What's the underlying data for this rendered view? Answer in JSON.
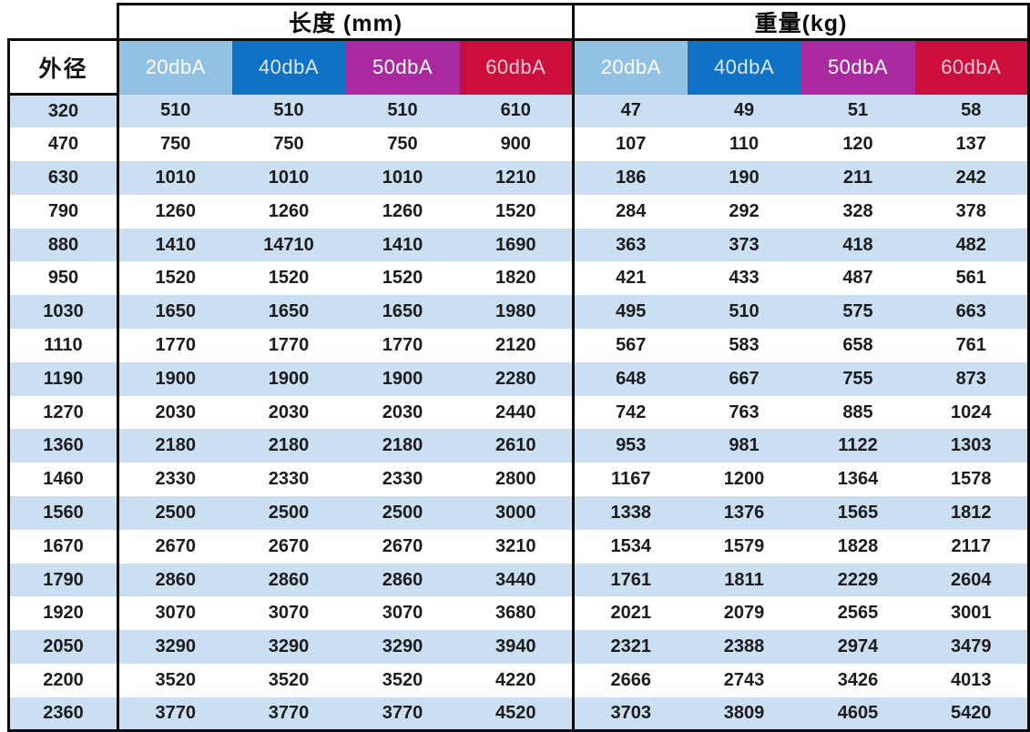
{
  "table": {
    "corner_label": "外径",
    "sections": [
      {
        "title": "长度 (mm)"
      },
      {
        "title": "重量(kg)"
      }
    ],
    "column_headers": [
      "20dbA",
      "40dbA",
      "50dbA",
      "60dbA"
    ],
    "column_styles": [
      {
        "name": "20dbA",
        "bg": "#92C1E4",
        "fg": "#FFFFFF"
      },
      {
        "name": "40dbA",
        "bg": "#0F72C4",
        "fg": "#DCE9F7"
      },
      {
        "name": "50dbA",
        "bg": "#AA28A0",
        "fg": "#FFFFFF"
      },
      {
        "name": "60dbA",
        "bg": "#CB0E3B",
        "fg": "#F0C9D4"
      }
    ],
    "rows": [
      {
        "diameter": "320",
        "length": [
          "510",
          "510",
          "510",
          "610"
        ],
        "weight": [
          "47",
          "49",
          "51",
          "58"
        ]
      },
      {
        "diameter": "470",
        "length": [
          "750",
          "750",
          "750",
          "900"
        ],
        "weight": [
          "107",
          "110",
          "120",
          "137"
        ]
      },
      {
        "diameter": "630",
        "length": [
          "1010",
          "1010",
          "1010",
          "1210"
        ],
        "weight": [
          "186",
          "190",
          "211",
          "242"
        ]
      },
      {
        "diameter": "790",
        "length": [
          "1260",
          "1260",
          "1260",
          "1520"
        ],
        "weight": [
          "284",
          "292",
          "328",
          "378"
        ]
      },
      {
        "diameter": "880",
        "length": [
          "1410",
          "14710",
          "1410",
          "1690"
        ],
        "weight": [
          "363",
          "373",
          "418",
          "482"
        ]
      },
      {
        "diameter": "950",
        "length": [
          "1520",
          "1520",
          "1520",
          "1820"
        ],
        "weight": [
          "421",
          "433",
          "487",
          "561"
        ]
      },
      {
        "diameter": "1030",
        "length": [
          "1650",
          "1650",
          "1650",
          "1980"
        ],
        "weight": [
          "495",
          "510",
          "575",
          "663"
        ]
      },
      {
        "diameter": "1110",
        "length": [
          "1770",
          "1770",
          "1770",
          "2120"
        ],
        "weight": [
          "567",
          "583",
          "658",
          "761"
        ]
      },
      {
        "diameter": "1190",
        "length": [
          "1900",
          "1900",
          "1900",
          "2280"
        ],
        "weight": [
          "648",
          "667",
          "755",
          "873"
        ]
      },
      {
        "diameter": "1270",
        "length": [
          "2030",
          "2030",
          "2030",
          "2440"
        ],
        "weight": [
          "742",
          "763",
          "885",
          "1024"
        ]
      },
      {
        "diameter": "1360",
        "length": [
          "2180",
          "2180",
          "2180",
          "2610"
        ],
        "weight": [
          "953",
          "981",
          "1122",
          "1303"
        ]
      },
      {
        "diameter": "1460",
        "length": [
          "2330",
          "2330",
          "2330",
          "2800"
        ],
        "weight": [
          "1167",
          "1200",
          "1364",
          "1578"
        ]
      },
      {
        "diameter": "1560",
        "length": [
          "2500",
          "2500",
          "2500",
          "3000"
        ],
        "weight": [
          "1338",
          "1376",
          "1565",
          "1812"
        ]
      },
      {
        "diameter": "1670",
        "length": [
          "2670",
          "2670",
          "2670",
          "3210"
        ],
        "weight": [
          "1534",
          "1579",
          "1828",
          "2117"
        ]
      },
      {
        "diameter": "1790",
        "length": [
          "2860",
          "2860",
          "2860",
          "3440"
        ],
        "weight": [
          "1761",
          "1811",
          "2229",
          "2604"
        ]
      },
      {
        "diameter": "1920",
        "length": [
          "3070",
          "3070",
          "3070",
          "3680"
        ],
        "weight": [
          "2021",
          "2079",
          "2565",
          "3001"
        ]
      },
      {
        "diameter": "2050",
        "length": [
          "3290",
          "3290",
          "3290",
          "3940"
        ],
        "weight": [
          "2321",
          "2388",
          "2974",
          "3479"
        ]
      },
      {
        "diameter": "2200",
        "length": [
          "3520",
          "3520",
          "3520",
          "4220"
        ],
        "weight": [
          "2666",
          "2743",
          "3426",
          "4013"
        ]
      },
      {
        "diameter": "2360",
        "length": [
          "3770",
          "3770",
          "3770",
          "4520"
        ],
        "weight": [
          "3703",
          "3809",
          "4605",
          "5420"
        ]
      }
    ]
  },
  "colors": {
    "stripe": "#CBDFF2",
    "border": "#0B0B0B",
    "text": "#1C1C1C"
  }
}
